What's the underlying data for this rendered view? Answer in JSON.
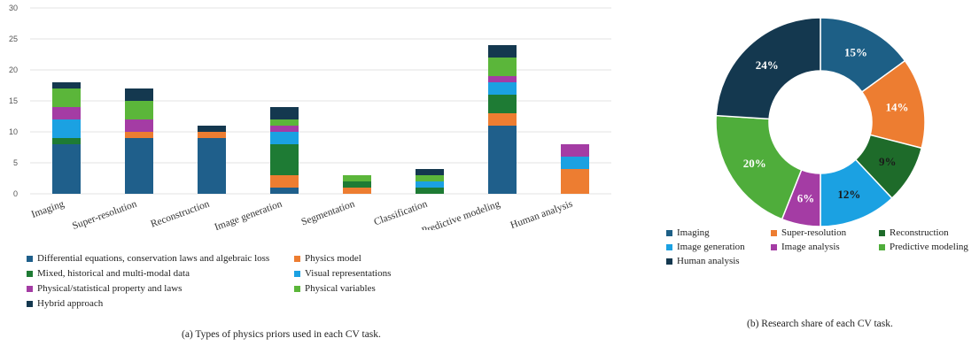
{
  "chart_data": [
    {
      "type": "bar",
      "stacked": true,
      "caption": "(a) Types of physics priors used in each CV task.",
      "categories": [
        "Imaging",
        "Super-resolution",
        "Reconstruction",
        "Image generation",
        "Segmentation",
        "Classification",
        "Predictive modeling",
        "Human analysis"
      ],
      "ylim": [
        0,
        30
      ],
      "yticks": [
        0,
        5,
        10,
        15,
        20,
        25,
        30
      ],
      "grid": true,
      "legend_position": "bottom",
      "series": [
        {
          "name": "Differential equations,  conservation laws  and algebraic loss",
          "color": "#1f5f8b",
          "values": [
            8,
            9,
            9,
            1,
            0,
            0,
            11,
            0
          ]
        },
        {
          "name": "Physics model",
          "color": "#ed7d31",
          "values": [
            0,
            1,
            1,
            2,
            1,
            0,
            2,
            4
          ]
        },
        {
          "name": "Mixed, historical and multi-modal data",
          "color": "#1e7b34",
          "values": [
            1,
            0,
            0,
            5,
            1,
            1,
            3,
            0
          ]
        },
        {
          "name": "Visual representations",
          "color": "#1ba1e2",
          "values": [
            3,
            0,
            0,
            2,
            0,
            1,
            2,
            2
          ]
        },
        {
          "name": "Physical/statistical property and laws",
          "color": "#a43ca4",
          "values": [
            2,
            2,
            0,
            1,
            0,
            0,
            1,
            2
          ]
        },
        {
          "name": "Physical variables",
          "color": "#5bb63a",
          "values": [
            3,
            3,
            0,
            1,
            1,
            1,
            3,
            0
          ]
        },
        {
          "name": "Hybrid approach",
          "color": "#14384f",
          "values": [
            1,
            2,
            1,
            2,
            0,
            1,
            2,
            0
          ]
        }
      ]
    },
    {
      "type": "pie",
      "donut": true,
      "caption": "(b) Research share of each CV task.",
      "legend_position": "bottom",
      "slices": [
        {
          "name": "Imaging",
          "value": 15,
          "label": "15%",
          "color": "#1d5f86"
        },
        {
          "name": "Super-resolution",
          "value": 14,
          "label": "14%",
          "color": "#ed7d31"
        },
        {
          "name": "Reconstruction",
          "value": 9,
          "label": "9%",
          "color": "#1e6b2a"
        },
        {
          "name": "Image generation",
          "value": 12,
          "label": "12%",
          "color": "#1ba1e2"
        },
        {
          "name": "Image analysis",
          "value": 6,
          "label": "6%",
          "color": "#a43ca4"
        },
        {
          "name": "Predictive modeling",
          "value": 20,
          "label": "20%",
          "color": "#4fad3b"
        },
        {
          "name": "Human analysis",
          "value": 24,
          "label": "24%",
          "color": "#14384f"
        }
      ]
    }
  ]
}
